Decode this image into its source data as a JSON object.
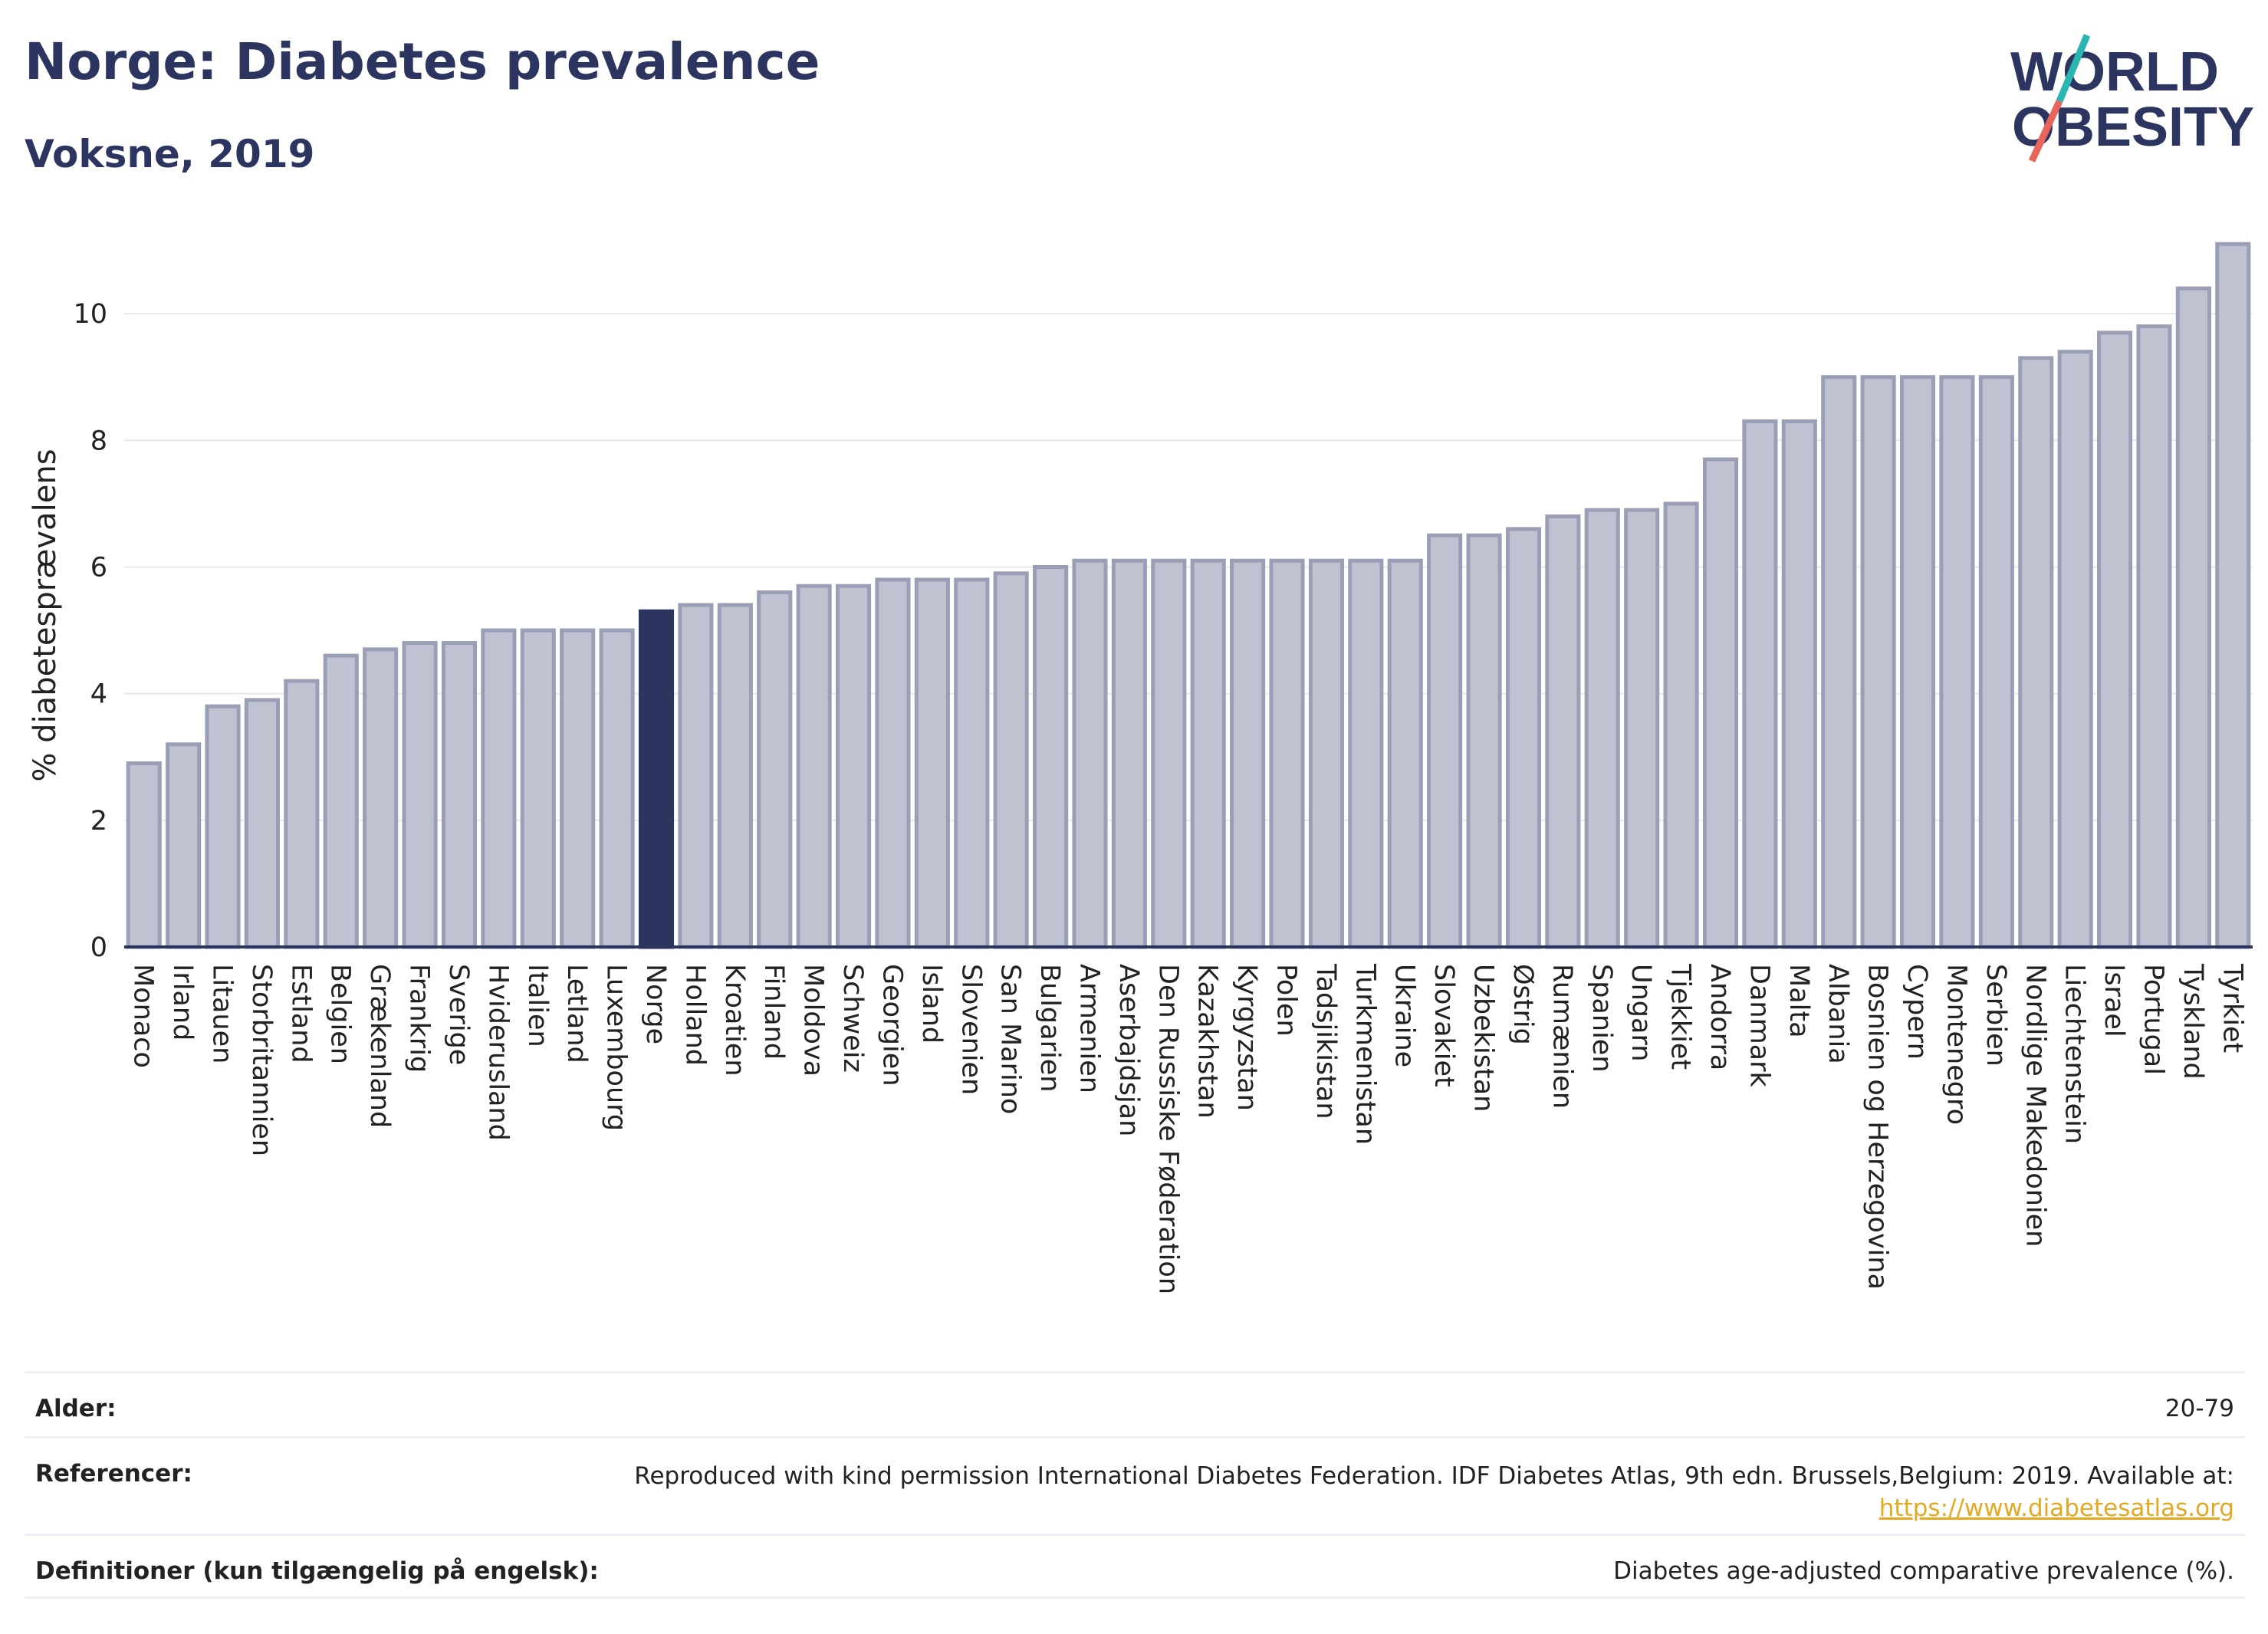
{
  "header": {
    "title": "Norge: Diabetes prevalence",
    "subtitle": "Voksne, 2019"
  },
  "logo": {
    "line1": "WORLD",
    "line2": "OBESITY",
    "slash_color_top": "#2bb5b0",
    "slash_color_bottom": "#e8655a"
  },
  "colors": {
    "bar": "#bfc3d1",
    "bar_border": "#9a9fb6",
    "highlight": "#2c3560",
    "grid": "#e6e8ef",
    "link": "#e5a823"
  },
  "chart_data": {
    "type": "bar",
    "ylabel": "% diabetesprævalens",
    "xlabel": "",
    "ylim": [
      0,
      11.2
    ],
    "yticks": [
      0,
      2,
      4,
      6,
      8,
      10
    ],
    "grid": true,
    "highlight": "Norge",
    "categories": [
      "Monaco",
      "Irland",
      "Litauen",
      "Storbritannien",
      "Estland",
      "Belgien",
      "Grækenland",
      "Frankrig",
      "Sverige",
      "Hviderusland",
      "Italien",
      "Letland",
      "Luxembourg",
      "Norge",
      "Holland",
      "Kroatien",
      "Finland",
      "Moldova",
      "Schweiz",
      "Georgien",
      "Island",
      "Slovenien",
      "San Marino",
      "Bulgarien",
      "Armenien",
      "Aserbajdsjan",
      "Den Russiske Føderation",
      "Kazakhstan",
      "Kyrgyzstan",
      "Polen",
      "Tadsjikistan",
      "Turkmenistan",
      "Ukraine",
      "Slovakiet",
      "Uzbekistan",
      "Østrig",
      "Rumænien",
      "Spanien",
      "Ungarn",
      "Tjekkiet",
      "Andorra",
      "Danmark",
      "Malta",
      "Albania",
      "Bosnien og Herzegovina",
      "Cypern",
      "Montenegro",
      "Serbien",
      "Nordlige Makedonien",
      "Liechtenstein",
      "Israel",
      "Portugal",
      "Tyskland",
      "Tyrkiet"
    ],
    "values": [
      2.9,
      3.2,
      3.8,
      3.9,
      4.2,
      4.6,
      4.7,
      4.8,
      4.8,
      5.0,
      5.0,
      5.0,
      5.0,
      5.3,
      5.4,
      5.4,
      5.6,
      5.7,
      5.7,
      5.8,
      5.8,
      5.8,
      5.9,
      6.0,
      6.1,
      6.1,
      6.1,
      6.1,
      6.1,
      6.1,
      6.1,
      6.1,
      6.1,
      6.5,
      6.5,
      6.6,
      6.8,
      6.9,
      6.9,
      7.0,
      7.7,
      8.3,
      8.3,
      9.0,
      9.0,
      9.0,
      9.0,
      9.0,
      9.3,
      9.4,
      9.7,
      9.8,
      10.4,
      11.1
    ]
  },
  "footer": {
    "age_label": "Alder:",
    "age_value": "20-79",
    "ref_label": "Referencer:",
    "ref_text": "Reproduced with kind permission International Diabetes Federation. IDF Diabetes Atlas, 9th edn. Brussels,Belgium: 2019. Available at:",
    "ref_link": "https://www.diabetesatlas.org",
    "def_label": "Definitioner (kun tilgængelig på engelsk):",
    "def_value": "Diabetes age-adjusted comparative prevalence (%)."
  }
}
